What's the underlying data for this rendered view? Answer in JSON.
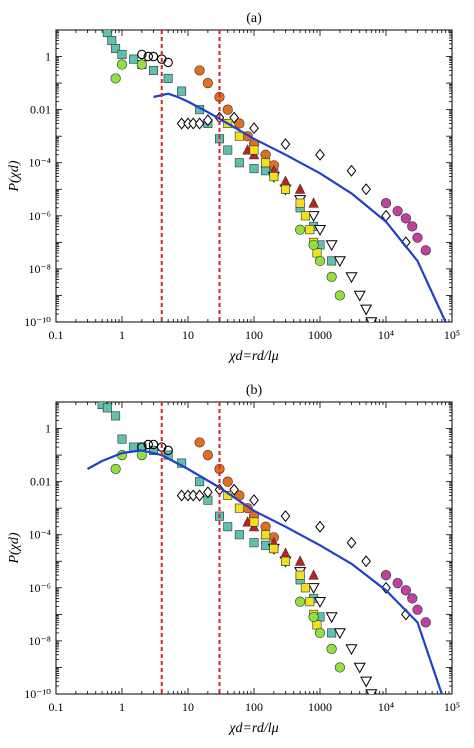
{
  "chart_data": [
    {
      "panel": "(a)",
      "type": "scatter",
      "xlabel": "χd=rd/lμ",
      "ylabel": "P(χd)",
      "x_scale": "log",
      "y_scale": "log",
      "xlim": [
        0.1,
        100000
      ],
      "ylim": [
        1e-10,
        10
      ],
      "x_tick_labels": [
        "0.1",
        "1",
        "10",
        "100",
        "1000",
        "10⁴",
        "10⁵"
      ],
      "y_tick_labels": [
        "1",
        "0.01",
        "10⁻⁴",
        "10⁻⁶",
        "10⁻⁸",
        "10⁻¹⁰"
      ],
      "vlines": [
        4,
        30
      ],
      "colors": {
        "fit": "#2040c8",
        "vline": "#e02020",
        "cyan": "#5fc0b0",
        "orange": "#e07020",
        "yellow": "#f0e020",
        "green": "#90e040",
        "red": "#c02020",
        "magenta": "#c040a0"
      },
      "fit_curve": [
        [
          3,
          0.03
        ],
        [
          5,
          0.04
        ],
        [
          7,
          0.03
        ],
        [
          10,
          0.02
        ],
        [
          20,
          0.008
        ],
        [
          40,
          0.003
        ],
        [
          100,
          0.0008
        ],
        [
          300,
          0.0002
        ],
        [
          1000,
          4e-05
        ],
        [
          3000,
          7e-06
        ],
        [
          10000,
          6e-07
        ],
        [
          30000,
          2e-08
        ],
        [
          80000,
          1e-10
        ]
      ],
      "series": [
        {
          "marker": "square",
          "color": "#5fc0b0",
          "points": [
            [
              0.6,
              8
            ],
            [
              0.7,
              4
            ],
            [
              0.8,
              2
            ],
            [
              1,
              1.2
            ],
            [
              1.5,
              0.8
            ],
            [
              2,
              0.5
            ],
            [
              3,
              0.3
            ],
            [
              5,
              0.15
            ],
            [
              8,
              0.05
            ],
            [
              15,
              0.01
            ],
            [
              20,
              0.003
            ],
            [
              30,
              0.0008
            ],
            [
              40,
              0.0003
            ],
            [
              60,
              0.0001
            ],
            [
              100,
              6e-05
            ],
            [
              150,
              5e-05
            ],
            [
              200,
              4e-05
            ],
            [
              300,
              1e-05
            ],
            [
              500,
              2e-06
            ],
            [
              800,
              4e-07
            ],
            [
              1000,
              8e-08
            ],
            [
              1500,
              2e-08
            ]
          ]
        },
        {
          "marker": "circle",
          "color": "#e07020",
          "points": [
            [
              15,
              0.3
            ],
            [
              20,
              0.1
            ],
            [
              30,
              0.03
            ],
            [
              40,
              0.01
            ],
            [
              60,
              0.003
            ],
            [
              80,
              0.001
            ],
            [
              100,
              0.0005
            ],
            [
              150,
              0.0002
            ],
            [
              200,
              8e-05
            ]
          ]
        },
        {
          "marker": "open-diamond",
          "color": "#000000",
          "points": [
            [
              8,
              0.003
            ],
            [
              10,
              0.003
            ],
            [
              12,
              0.003
            ],
            [
              15,
              0.003
            ],
            [
              20,
              0.004
            ],
            [
              30,
              0.005
            ],
            [
              50,
              0.005
            ],
            [
              100,
              0.002
            ],
            [
              300,
              0.0005
            ],
            [
              1000,
              0.0002
            ],
            [
              3000,
              5e-05
            ],
            [
              5000,
              1e-05
            ],
            [
              10000,
              1e-06
            ],
            [
              20000,
              1e-07
            ]
          ]
        },
        {
          "marker": "open-triangle-down",
          "color": "#000000",
          "points": [
            [
              200,
              3e-05
            ],
            [
              300,
              1e-05
            ],
            [
              500,
              4e-06
            ],
            [
              800,
              1e-06
            ],
            [
              1000,
              3e-07
            ],
            [
              1500,
              8e-08
            ],
            [
              2000,
              2e-08
            ],
            [
              3000,
              5e-09
            ],
            [
              4000,
              1e-09
            ],
            [
              5000,
              3e-10
            ],
            [
              6000,
              1e-10
            ]
          ]
        },
        {
          "marker": "open-circle",
          "color": "#000000",
          "points": [
            [
              2,
              1.2
            ],
            [
              2.5,
              1
            ],
            [
              3,
              1
            ],
            [
              4,
              0.8
            ],
            [
              5,
              0.6
            ]
          ]
        },
        {
          "marker": "triangle",
          "color": "#c02020",
          "points": [
            [
              80,
              0.0003
            ],
            [
              100,
              0.0002
            ],
            [
              150,
              0.0001
            ],
            [
              200,
              5e-05
            ],
            [
              300,
              2e-05
            ],
            [
              500,
              1e-05
            ],
            [
              800,
              3e-06
            ]
          ]
        },
        {
          "marker": "square",
          "color": "#f0e020",
          "points": [
            [
              40,
              0.003
            ],
            [
              60,
              0.001
            ],
            [
              100,
              0.0003
            ],
            [
              150,
              0.0001
            ],
            [
              200,
              3e-05
            ],
            [
              300,
              1e-05
            ],
            [
              500,
              3e-06
            ],
            [
              600,
              1e-06
            ],
            [
              700,
              3e-07
            ],
            [
              800,
              1e-07
            ],
            [
              900,
              4e-08
            ]
          ]
        },
        {
          "marker": "circle",
          "color": "#90e040",
          "points": [
            [
              0.8,
              0.15
            ],
            [
              1,
              0.5
            ],
            [
              2,
              0.5
            ],
            [
              500,
              3e-07
            ],
            [
              800,
              8e-08
            ],
            [
              1000,
              2e-08
            ],
            [
              1500,
              5e-09
            ],
            [
              2000,
              1e-09
            ]
          ]
        },
        {
          "marker": "circle",
          "color": "#c040a0",
          "points": [
            [
              10000,
              3e-06
            ],
            [
              15000,
              1.5e-06
            ],
            [
              20000,
              8e-07
            ],
            [
              25000,
              4e-07
            ],
            [
              30000,
              1.5e-07
            ],
            [
              40000,
              5e-08
            ]
          ]
        }
      ]
    },
    {
      "panel": "(b)",
      "type": "scatter",
      "xlabel": "χd=rd/lμ",
      "ylabel": "P(χd)",
      "x_scale": "log",
      "y_scale": "log",
      "xlim": [
        0.1,
        100000
      ],
      "ylim": [
        1e-10,
        10
      ],
      "x_tick_labels": [
        "0.1",
        "1",
        "10",
        "100",
        "1000",
        "10⁴",
        "10⁵"
      ],
      "y_tick_labels": [
        "1",
        "0.01",
        "10⁻⁴",
        "10⁻⁶",
        "10⁻⁸",
        "10⁻¹⁰"
      ],
      "vlines": [
        4,
        30
      ],
      "colors": {
        "fit": "#2040c8",
        "vline": "#e02020",
        "cyan": "#5fc0b0",
        "orange": "#e07020",
        "yellow": "#f0e020",
        "green": "#90e040",
        "red": "#c02020",
        "magenta": "#c040a0"
      },
      "fit_curve": [
        [
          0.3,
          0.03
        ],
        [
          0.5,
          0.06
        ],
        [
          1,
          0.12
        ],
        [
          2,
          0.15
        ],
        [
          4,
          0.1
        ],
        [
          10,
          0.03
        ],
        [
          30,
          0.006
        ],
        [
          100,
          0.0008
        ],
        [
          300,
          0.0002
        ],
        [
          1000,
          4e-05
        ],
        [
          3000,
          8e-06
        ],
        [
          10000,
          8e-07
        ],
        [
          30000,
          5e-08
        ],
        [
          70000,
          1e-10
        ]
      ],
      "series": [
        {
          "marker": "square",
          "color": "#5fc0b0",
          "points": [
            [
              0.5,
              8
            ],
            [
              0.6,
              6
            ],
            [
              0.8,
              3
            ],
            [
              1,
              0.4
            ],
            [
              1.5,
              0.2
            ],
            [
              2,
              0.2
            ],
            [
              3,
              0.15
            ],
            [
              5,
              0.1
            ],
            [
              8,
              0.05
            ],
            [
              15,
              0.01
            ],
            [
              20,
              0.002
            ],
            [
              30,
              0.0005
            ],
            [
              40,
              0.0002
            ],
            [
              60,
              0.0001
            ],
            [
              100,
              5e-05
            ],
            [
              150,
              4e-05
            ],
            [
              200,
              3e-05
            ],
            [
              300,
              1e-05
            ],
            [
              500,
              2e-06
            ],
            [
              800,
              4e-07
            ],
            [
              1000,
              8e-08
            ],
            [
              1500,
              2e-08
            ]
          ]
        },
        {
          "marker": "circle",
          "color": "#e07020",
          "points": [
            [
              15,
              0.3
            ],
            [
              20,
              0.1
            ],
            [
              30,
              0.03
            ],
            [
              40,
              0.01
            ],
            [
              60,
              0.003
            ],
            [
              80,
              0.001
            ],
            [
              100,
              0.0005
            ],
            [
              150,
              0.0002
            ],
            [
              200,
              8e-05
            ]
          ]
        },
        {
          "marker": "open-diamond",
          "color": "#000000",
          "points": [
            [
              8,
              0.003
            ],
            [
              10,
              0.003
            ],
            [
              12,
              0.003
            ],
            [
              15,
              0.003
            ],
            [
              20,
              0.004
            ],
            [
              30,
              0.005
            ],
            [
              50,
              0.005
            ],
            [
              100,
              0.002
            ],
            [
              300,
              0.0005
            ],
            [
              1000,
              0.0002
            ],
            [
              3000,
              5e-05
            ],
            [
              5000,
              1e-05
            ],
            [
              10000,
              1e-06
            ],
            [
              20000,
              1e-07
            ]
          ]
        },
        {
          "marker": "open-triangle-down",
          "color": "#000000",
          "points": [
            [
              200,
              3e-05
            ],
            [
              300,
              1e-05
            ],
            [
              500,
              4e-06
            ],
            [
              800,
              1e-06
            ],
            [
              1000,
              3e-07
            ],
            [
              1500,
              8e-08
            ],
            [
              2000,
              2e-08
            ],
            [
              3000,
              5e-09
            ],
            [
              4000,
              1e-09
            ],
            [
              5000,
              3e-10
            ],
            [
              6000,
              1e-10
            ]
          ]
        },
        {
          "marker": "open-circle",
          "color": "#000000",
          "points": [
            [
              2,
              0.2
            ],
            [
              2.5,
              0.25
            ],
            [
              3,
              0.25
            ],
            [
              4,
              0.2
            ],
            [
              5,
              0.15
            ]
          ]
        },
        {
          "marker": "triangle",
          "color": "#c02020",
          "points": [
            [
              80,
              0.0003
            ],
            [
              100,
              0.0002
            ],
            [
              150,
              0.0001
            ],
            [
              200,
              5e-05
            ],
            [
              300,
              2e-05
            ],
            [
              500,
              1e-05
            ],
            [
              800,
              3e-06
            ]
          ]
        },
        {
          "marker": "square",
          "color": "#f0e020",
          "points": [
            [
              40,
              0.003
            ],
            [
              60,
              0.001
            ],
            [
              100,
              0.0003
            ],
            [
              150,
              0.0001
            ],
            [
              200,
              3e-05
            ],
            [
              300,
              1e-05
            ],
            [
              500,
              3e-06
            ],
            [
              600,
              1e-06
            ],
            [
              700,
              3e-07
            ],
            [
              800,
              1e-07
            ],
            [
              900,
              4e-08
            ]
          ]
        },
        {
          "marker": "circle",
          "color": "#90e040",
          "points": [
            [
              0.8,
              0.03
            ],
            [
              1,
              0.1
            ],
            [
              2,
              0.1
            ],
            [
              500,
              3e-07
            ],
            [
              800,
              8e-08
            ],
            [
              1000,
              2e-08
            ],
            [
              1500,
              5e-09
            ],
            [
              2000,
              1e-09
            ]
          ]
        },
        {
          "marker": "circle",
          "color": "#c040a0",
          "points": [
            [
              10000,
              3e-06
            ],
            [
              15000,
              1.5e-06
            ],
            [
              20000,
              8e-07
            ],
            [
              25000,
              4e-07
            ],
            [
              30000,
              1.5e-07
            ],
            [
              40000,
              5e-08
            ]
          ]
        }
      ]
    }
  ]
}
